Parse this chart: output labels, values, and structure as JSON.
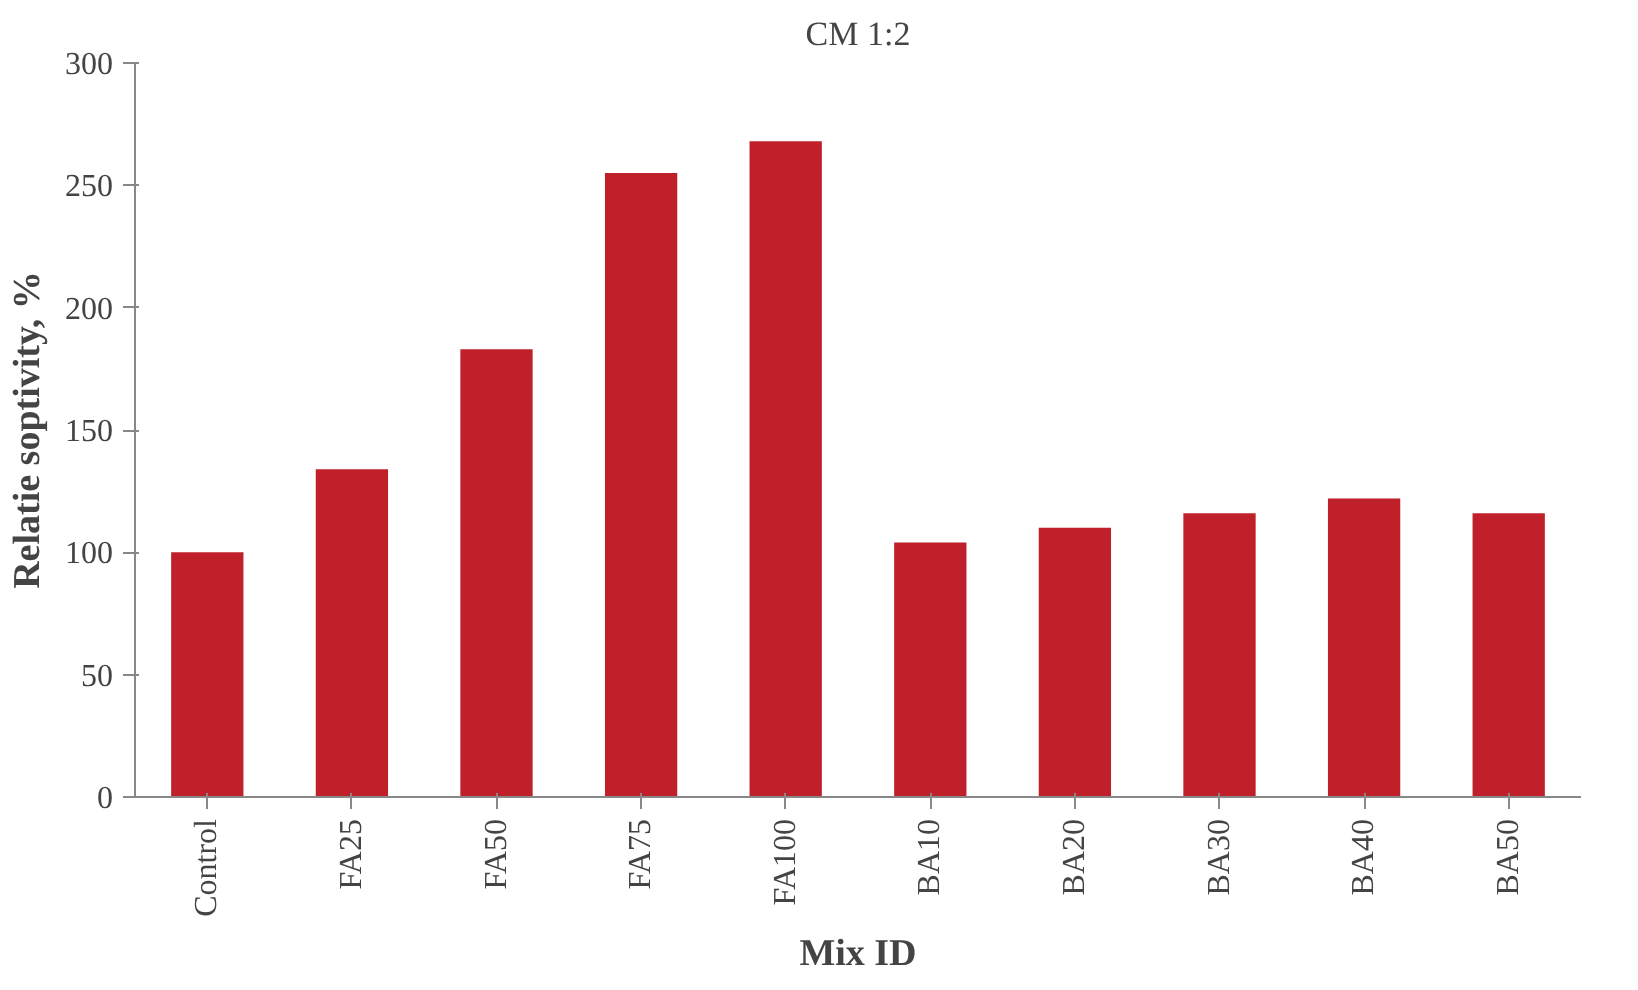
{
  "chart_data": {
    "type": "bar",
    "title": "CM 1:2",
    "xlabel": "Mix ID",
    "ylabel": "Relatie soptivity, %",
    "categories": [
      "Control",
      "FA25",
      "FA50",
      "FA75",
      "FA100",
      "BA10",
      "BA20",
      "BA30",
      "BA40",
      "BA50"
    ],
    "values": [
      100,
      134,
      183,
      255,
      268,
      104,
      110,
      116,
      122,
      116
    ],
    "color": "#c0202a",
    "ylim": [
      0,
      300
    ],
    "yticks": [
      0,
      50,
      100,
      150,
      200,
      250,
      300
    ],
    "grid": false
  }
}
